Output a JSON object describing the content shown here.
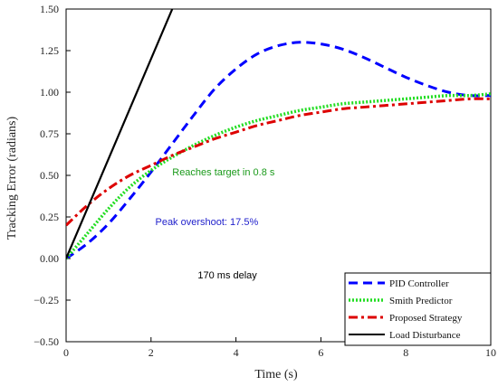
{
  "chart_data": {
    "type": "line",
    "xlabel": "Time (s)",
    "ylabel": "Tracking Error (radians)",
    "xlim": [
      0,
      10
    ],
    "ylim": [
      -0.5,
      1.5
    ],
    "x_ticks": [
      "0",
      "2",
      "4",
      "6",
      "8",
      "10"
    ],
    "y_ticks": [
      "−0.50",
      "−0.25",
      "0.00",
      "0.25",
      "0.50",
      "0.75",
      "1.00",
      "1.25",
      "1.50"
    ],
    "grid": false,
    "legend_position": "bottom-right",
    "series": [
      {
        "name": "PID Controller",
        "color": "#0000ff",
        "style": "dashed",
        "x": [
          0,
          0.5,
          1,
          1.5,
          2,
          2.5,
          3,
          3.5,
          4,
          4.5,
          5,
          5.5,
          6,
          6.5,
          7,
          7.5,
          8,
          8.5,
          9,
          9.5,
          10
        ],
        "y": [
          0.0,
          0.09,
          0.21,
          0.36,
          0.52,
          0.69,
          0.86,
          1.02,
          1.14,
          1.23,
          1.28,
          1.3,
          1.29,
          1.26,
          1.21,
          1.15,
          1.09,
          1.04,
          1.0,
          0.98,
          0.98
        ]
      },
      {
        "name": "Smith Predictor",
        "color": "#22dd22",
        "style": "dotted",
        "x": [
          0,
          0.5,
          1,
          1.5,
          2,
          2.5,
          3,
          3.5,
          4,
          4.5,
          5,
          5.5,
          6,
          6.5,
          7,
          7.5,
          8,
          8.5,
          9,
          9.5,
          10
        ],
        "y": [
          0.0,
          0.15,
          0.3,
          0.43,
          0.53,
          0.61,
          0.68,
          0.74,
          0.79,
          0.83,
          0.86,
          0.89,
          0.91,
          0.93,
          0.94,
          0.95,
          0.96,
          0.97,
          0.98,
          0.98,
          0.99
        ]
      },
      {
        "name": "Proposed Strategy",
        "color": "#dd0000",
        "style": "dash-dot",
        "x": [
          0,
          0.5,
          1,
          1.5,
          2,
          2.5,
          3,
          3.5,
          4,
          4.5,
          5,
          5.5,
          6,
          6.5,
          7,
          7.5,
          8,
          8.5,
          9,
          9.5,
          10
        ],
        "y": [
          0.2,
          0.32,
          0.42,
          0.5,
          0.56,
          0.62,
          0.67,
          0.72,
          0.76,
          0.8,
          0.83,
          0.86,
          0.88,
          0.9,
          0.91,
          0.92,
          0.93,
          0.94,
          0.95,
          0.96,
          0.96
        ]
      },
      {
        "name": "Load Disturbance",
        "color": "#000000",
        "style": "solid",
        "x": [
          0,
          2.5
        ],
        "y": [
          0.0,
          1.5
        ]
      }
    ],
    "annotations": [
      {
        "text": "Reaches target in 0.8 s",
        "x": 2.5,
        "y": 0.5,
        "color": "#1a9a1a"
      },
      {
        "text": "Peak overshoot: 17.5%",
        "x": 2.1,
        "y": 0.2,
        "color": "#2222cc"
      },
      {
        "text": "170 ms delay",
        "x": 3.1,
        "y": -0.12,
        "color": "#000000"
      }
    ]
  }
}
